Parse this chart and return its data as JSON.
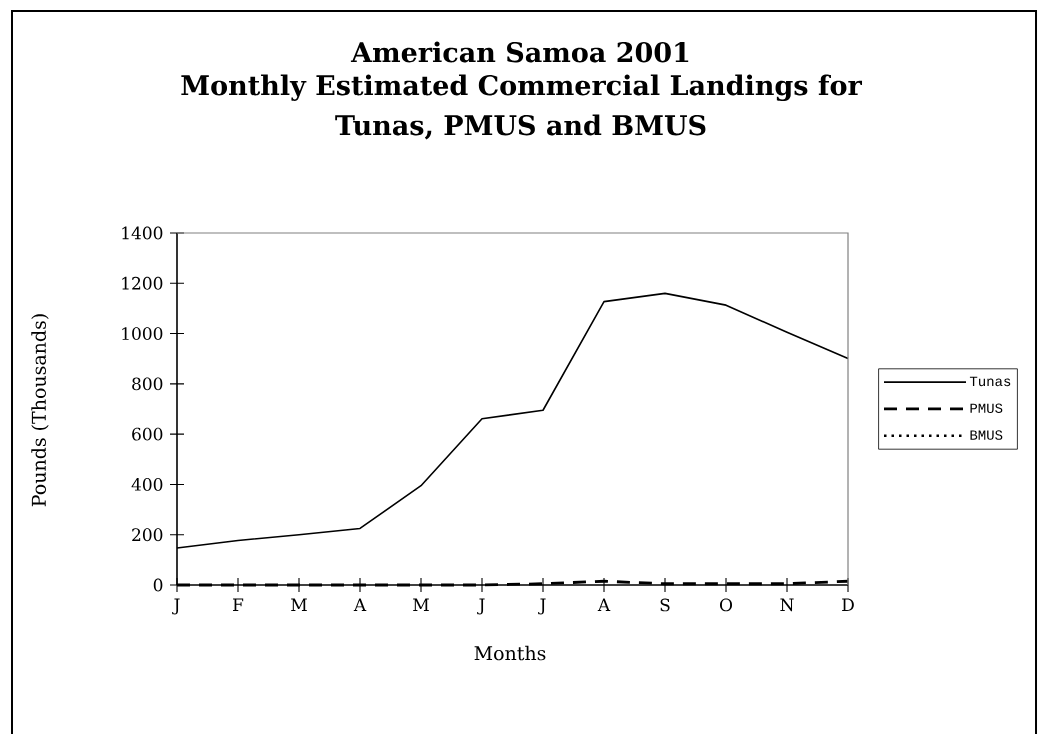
{
  "chart_data": {
    "type": "line",
    "title": "American Samoa 2001",
    "subtitle": "Monthly Estimated Commercial Landings for Tunas, PMUS and BMUS",
    "xlabel": "Months",
    "ylabel": "Pounds (Thousands)",
    "categories": [
      "J",
      "F",
      "M",
      "A",
      "M",
      "J",
      "J",
      "A",
      "S",
      "O",
      "N",
      "D"
    ],
    "series": [
      {
        "name": "Tunas",
        "color": "#000000",
        "line_style": "solid",
        "values": [
          147,
          177,
          200,
          225,
          395,
          661,
          695,
          1127,
          1160,
          1113,
          1005,
          901
        ]
      },
      {
        "name": "PMUS",
        "color": "#000000",
        "line_style": "dashed",
        "values": [
          0,
          0,
          0,
          0,
          0,
          0,
          5,
          15,
          5,
          5,
          5,
          15
        ]
      },
      {
        "name": "BMUS",
        "color": "#000000",
        "line_style": "dotted",
        "values": [
          null,
          null,
          null,
          null,
          null,
          null,
          null,
          null,
          null,
          null,
          null,
          null
        ]
      }
    ],
    "ylim": [
      0,
      1400
    ],
    "yticks": [
      0,
      200,
      400,
      600,
      800,
      1000,
      1200,
      1400
    ],
    "legend": "right",
    "marker": "none"
  }
}
